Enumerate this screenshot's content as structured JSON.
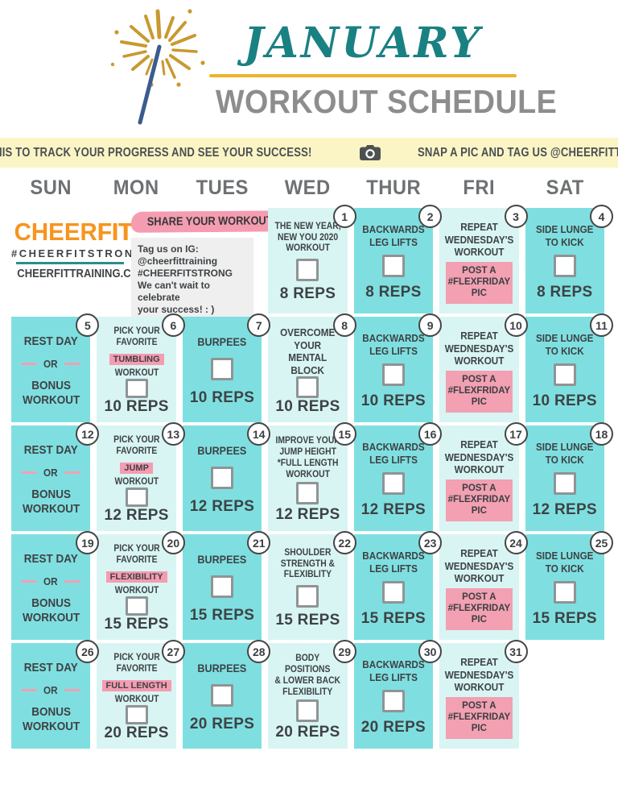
{
  "header": {
    "month": "JANUARY",
    "title": "WORKOUT SCHEDULE"
  },
  "icons": {
    "header": "sparkler-icon",
    "banner": "camera-icon"
  },
  "banner": {
    "left": "USE THIS TO TRACK YOUR PROGRESS AND SEE YOUR SUCCESS!",
    "right": "SNAP A PIC AND TAG US @CHEERFITTRAINING"
  },
  "day_headers": [
    "SUN",
    "MON",
    "TUES",
    "WED",
    "THUR",
    "FRI",
    "SAT"
  ],
  "branding": {
    "logo_cheer": "CHEER",
    "logo_fit": "FIT",
    "hashtag": "#CHEERFITSTRONG",
    "website": "CHEERFITTRAINING.COM",
    "share_title": "SHARE YOUR WORKOUT:",
    "share_note": "Tag us on IG:\n@cheerfittraining\n#CHEERFITSTRONG\nWe can't wait to celebrate\nyour success! : )"
  },
  "colors": {
    "turquoise": "#7fdfe0",
    "light_cyan": "#d8f5f3",
    "pink": "#f2a0b2",
    "pink_highlight": "#f59cb0",
    "banner_yellow": "#fbf5c6",
    "gold": "#edb32b",
    "teal": "#1a8183",
    "orange": "#f7941e",
    "title_gray": "#8d8d8d",
    "day_gray": "#6e7173",
    "text_dark": "#3e4245"
  },
  "cells": [
    {
      "day": 1,
      "row": 1,
      "col": 4,
      "shade": "light",
      "kind": "workout",
      "lines": [
        "THE NEW YEAR,",
        "NEW YOU 2020",
        "WORKOUT"
      ],
      "checkbox": true,
      "reps": "8 REPS"
    },
    {
      "day": 2,
      "row": 1,
      "col": 5,
      "shade": "dark",
      "kind": "workout",
      "lines": [
        "BACKWARDS",
        "LEG LIFTS"
      ],
      "checkbox": true,
      "reps": "8 REPS"
    },
    {
      "day": 3,
      "row": 1,
      "col": 6,
      "shade": "light",
      "kind": "repeat",
      "lines": [
        "REPEAT",
        "WEDNESDAY'S",
        "WORKOUT"
      ],
      "pink_box": [
        "POST A",
        "#FLEXFRIDAY",
        "PIC"
      ]
    },
    {
      "day": 4,
      "row": 1,
      "col": 7,
      "shade": "dark",
      "kind": "workout",
      "lines": [
        "SIDE LUNGE",
        "TO KICK"
      ],
      "checkbox": true,
      "reps": "8 REPS"
    },
    {
      "day": 5,
      "row": 2,
      "col": 1,
      "shade": "dark",
      "kind": "rest",
      "top": "REST DAY",
      "mid": "OR",
      "bottom": [
        "BONUS",
        "WORKOUT"
      ]
    },
    {
      "day": 6,
      "row": 2,
      "col": 2,
      "shade": "light",
      "kind": "pick",
      "pre": [
        "PICK YOUR",
        "FAVORITE"
      ],
      "highlight": "TUMBLING",
      "post": "WORKOUT",
      "checkbox": true,
      "reps": "10 REPS"
    },
    {
      "day": 7,
      "row": 2,
      "col": 3,
      "shade": "dark",
      "kind": "workout",
      "lines": [
        "BURPEES"
      ],
      "checkbox": true,
      "reps": "10 REPS"
    },
    {
      "day": 8,
      "row": 2,
      "col": 4,
      "shade": "light",
      "kind": "workout",
      "lines": [
        "OVERCOME YOUR",
        "MENTAL BLOCK"
      ],
      "checkbox": true,
      "reps": "10 REPS"
    },
    {
      "day": 9,
      "row": 2,
      "col": 5,
      "shade": "dark",
      "kind": "workout",
      "lines": [
        "BACKWARDS",
        "LEG LIFTS"
      ],
      "checkbox": true,
      "reps": "10 REPS"
    },
    {
      "day": 10,
      "row": 2,
      "col": 6,
      "shade": "light",
      "kind": "repeat",
      "lines": [
        "REPEAT",
        "WEDNESDAY'S",
        "WORKOUT"
      ],
      "pink_box": [
        "POST A",
        "#FLEXFRIDAY",
        "PIC"
      ]
    },
    {
      "day": 11,
      "row": 2,
      "col": 7,
      "shade": "dark",
      "kind": "workout",
      "lines": [
        "SIDE LUNGE",
        "TO KICK"
      ],
      "checkbox": true,
      "reps": "10 REPS"
    },
    {
      "day": 12,
      "row": 3,
      "col": 1,
      "shade": "dark",
      "kind": "rest",
      "top": "REST DAY",
      "mid": "OR",
      "bottom": [
        "BONUS",
        "WORKOUT"
      ]
    },
    {
      "day": 13,
      "row": 3,
      "col": 2,
      "shade": "light",
      "kind": "pick",
      "pre": [
        "PICK YOUR",
        "FAVORITE"
      ],
      "highlight": "JUMP",
      "post": "WORKOUT",
      "checkbox": true,
      "reps": "12 REPS"
    },
    {
      "day": 14,
      "row": 3,
      "col": 3,
      "shade": "dark",
      "kind": "workout",
      "lines": [
        "BURPEES"
      ],
      "checkbox": true,
      "reps": "12 REPS"
    },
    {
      "day": 15,
      "row": 3,
      "col": 4,
      "shade": "light",
      "kind": "workout",
      "lines": [
        "IMPROVE YOUR",
        "JUMP HEIGHT",
        "*FULL LENGTH",
        "WORKOUT"
      ],
      "checkbox": true,
      "reps": "12 REPS"
    },
    {
      "day": 16,
      "row": 3,
      "col": 5,
      "shade": "dark",
      "kind": "workout",
      "lines": [
        "BACKWARDS",
        "LEG LIFTS"
      ],
      "checkbox": true,
      "reps": "12 REPS"
    },
    {
      "day": 17,
      "row": 3,
      "col": 6,
      "shade": "light",
      "kind": "repeat",
      "lines": [
        "REPEAT",
        "WEDNESDAY'S",
        "WORKOUT"
      ],
      "pink_box": [
        "POST A",
        "#FLEXFRIDAY",
        "PIC"
      ]
    },
    {
      "day": 18,
      "row": 3,
      "col": 7,
      "shade": "dark",
      "kind": "workout",
      "lines": [
        "SIDE LUNGE",
        "TO KICK"
      ],
      "checkbox": true,
      "reps": "12 REPS"
    },
    {
      "day": 19,
      "row": 4,
      "col": 1,
      "shade": "dark",
      "kind": "rest",
      "top": "REST DAY",
      "mid": "OR",
      "bottom": [
        "BONUS",
        "WORKOUT"
      ]
    },
    {
      "day": 20,
      "row": 4,
      "col": 2,
      "shade": "light",
      "kind": "pick",
      "pre": [
        "PICK YOUR",
        "FAVORITE"
      ],
      "highlight": "FLEXIBILITY",
      "post": "WORKOUT",
      "checkbox": true,
      "reps": "15 REPS"
    },
    {
      "day": 21,
      "row": 4,
      "col": 3,
      "shade": "dark",
      "kind": "workout",
      "lines": [
        "BURPEES"
      ],
      "checkbox": true,
      "reps": "15 REPS"
    },
    {
      "day": 22,
      "row": 4,
      "col": 4,
      "shade": "light",
      "kind": "workout",
      "lines": [
        "SHOULDER",
        "STRENGTH &",
        "FLEXIBLITY"
      ],
      "checkbox": true,
      "reps": "15 REPS"
    },
    {
      "day": 23,
      "row": 4,
      "col": 5,
      "shade": "dark",
      "kind": "workout",
      "lines": [
        "BACKWARDS",
        "LEG LIFTS"
      ],
      "checkbox": true,
      "reps": "15 REPS"
    },
    {
      "day": 24,
      "row": 4,
      "col": 6,
      "shade": "light",
      "kind": "repeat",
      "lines": [
        "REPEAT",
        "WEDNESDAY'S",
        "WORKOUT"
      ],
      "pink_box": [
        "POST A",
        "#FLEXFRIDAY",
        "PIC"
      ]
    },
    {
      "day": 25,
      "row": 4,
      "col": 7,
      "shade": "dark",
      "kind": "workout",
      "lines": [
        "SIDE LUNGE",
        "TO KICK"
      ],
      "checkbox": true,
      "reps": "15 REPS"
    },
    {
      "day": 26,
      "row": 5,
      "col": 1,
      "shade": "dark",
      "kind": "rest",
      "top": "REST DAY",
      "mid": "OR",
      "bottom": [
        "BONUS",
        "WORKOUT"
      ]
    },
    {
      "day": 27,
      "row": 5,
      "col": 2,
      "shade": "light",
      "kind": "pick",
      "pre": [
        "PICK YOUR",
        "FAVORITE"
      ],
      "highlight": "FULL LENGTH",
      "post": "WORKOUT",
      "checkbox": true,
      "reps": "20 REPS"
    },
    {
      "day": 28,
      "row": 5,
      "col": 3,
      "shade": "dark",
      "kind": "workout",
      "lines": [
        "BURPEES"
      ],
      "checkbox": true,
      "reps": "20 REPS"
    },
    {
      "day": 29,
      "row": 5,
      "col": 4,
      "shade": "light",
      "kind": "workout",
      "lines": [
        "BODY POSITIONS",
        "& LOWER BACK",
        "FLEXIBILITY"
      ],
      "checkbox": true,
      "reps": "20 REPS"
    },
    {
      "day": 30,
      "row": 5,
      "col": 5,
      "shade": "dark",
      "kind": "workout",
      "lines": [
        "BACKWARDS",
        "LEG LIFTS"
      ],
      "checkbox": true,
      "reps": "20 REPS"
    },
    {
      "day": 31,
      "row": 5,
      "col": 6,
      "shade": "light",
      "kind": "repeat",
      "lines": [
        "REPEAT",
        "WEDNESDAY'S",
        "WORKOUT"
      ],
      "pink_box": [
        "POST A",
        "#FLEXFRIDAY",
        "PIC"
      ]
    }
  ]
}
